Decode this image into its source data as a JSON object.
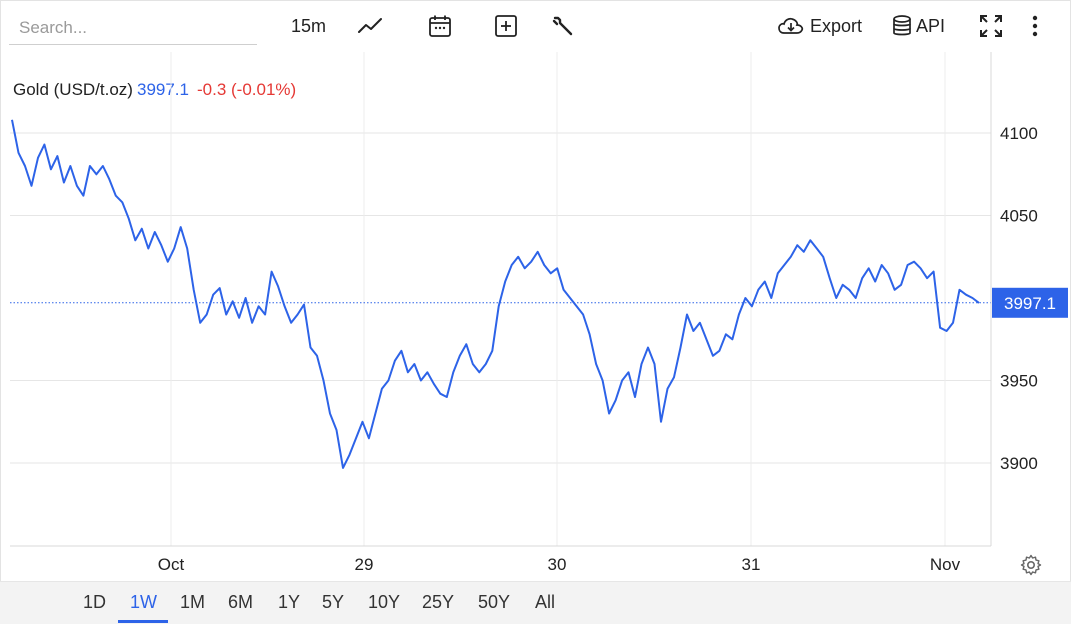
{
  "search": {
    "placeholder": "Search..."
  },
  "toolbar": {
    "interval": "15m",
    "export_label": "Export",
    "api_label": "API",
    "icons": [
      "line-chart-icon",
      "calendar-icon",
      "add-indicator-icon",
      "wrench-icon",
      "cloud-download-icon",
      "database-icon",
      "fullscreen-icon",
      "more-vertical-icon"
    ]
  },
  "legend": {
    "name": "Gold (USD/t.oz)",
    "price": "3997.1",
    "change": "-0.3 (-0.01%)"
  },
  "last_price_label": "3997.1",
  "ranges": [
    "1D",
    "1W",
    "1M",
    "6M",
    "1Y",
    "5Y",
    "10Y",
    "25Y",
    "50Y",
    "All"
  ],
  "active_range": "1W",
  "colors": {
    "line": "#2d63e8",
    "negative": "#e53935",
    "accent": "#2d63e8"
  },
  "chart_data": {
    "type": "line",
    "series": [
      {
        "name": "Gold (USD/t.oz)",
        "values": [
          4108,
          4088,
          4080,
          4068,
          4085,
          4093,
          4078,
          4086,
          4070,
          4080,
          4068,
          4062,
          4080,
          4075,
          4080,
          4072,
          4062,
          4058,
          4048,
          4035,
          4042,
          4030,
          4040,
          4032,
          4022,
          4030,
          4043,
          4030,
          4005,
          3985,
          3990,
          4002,
          4006,
          3990,
          3998,
          3988,
          4000,
          3985,
          3995,
          3990,
          4016,
          4007,
          3995,
          3985,
          3990,
          3996,
          3970,
          3965,
          3950,
          3930,
          3920,
          3897,
          3905,
          3915,
          3925,
          3915,
          3930,
          3945,
          3950,
          3962,
          3968,
          3955,
          3960,
          3950,
          3955,
          3948,
          3942,
          3940,
          3955,
          3965,
          3972,
          3960,
          3955,
          3960,
          3968,
          3995,
          4010,
          4020,
          4025,
          4018,
          4022,
          4028,
          4020,
          4015,
          4018,
          4005,
          4000,
          3995,
          3990,
          3978,
          3960,
          3950,
          3930,
          3938,
          3950,
          3955,
          3940,
          3960,
          3970,
          3960,
          3925,
          3945,
          3952,
          3970,
          3990,
          3980,
          3985,
          3975,
          3965,
          3968,
          3978,
          3975,
          3990,
          4000,
          3995,
          4005,
          4010,
          4000,
          4015,
          4020,
          4025,
          4032,
          4028,
          4035,
          4030,
          4025,
          4012,
          4000,
          4008,
          4005,
          4000,
          4012,
          4018,
          4010,
          4020,
          4015,
          4005,
          4008,
          4020,
          4022,
          4018,
          4012,
          4016,
          3982,
          3980,
          3985,
          4005,
          4002,
          4000,
          3997
        ]
      }
    ],
    "x_labels": [
      "Oct",
      "29",
      "30",
      "31",
      "Nov"
    ],
    "y_ticks": [
      3900,
      3950,
      4050,
      4100
    ],
    "ylim": [
      3850,
      4150
    ],
    "grid": true,
    "last_value": 3997.1
  }
}
